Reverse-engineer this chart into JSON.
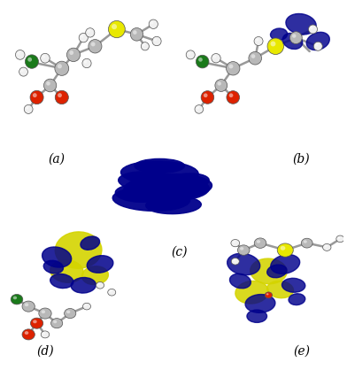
{
  "background_color": "#ffffff",
  "panel_labels": [
    "(a)",
    "(b)",
    "(c)",
    "(d)",
    "(e)"
  ],
  "label_fontsize": 10,
  "figsize": [
    3.92,
    4.18
  ],
  "dpi": 100,
  "colors": {
    "carbon": "#b8b8b8",
    "hydrogen": "#f0f0f0",
    "nitrogen": "#1a1aaa",
    "oxygen": "#dd2200",
    "sulfur": "#e8e800",
    "green_n": "#1a7a1a",
    "orbital_blue": "#00008b",
    "orbital_yellow": "#d4d400",
    "bond": "#999999"
  }
}
